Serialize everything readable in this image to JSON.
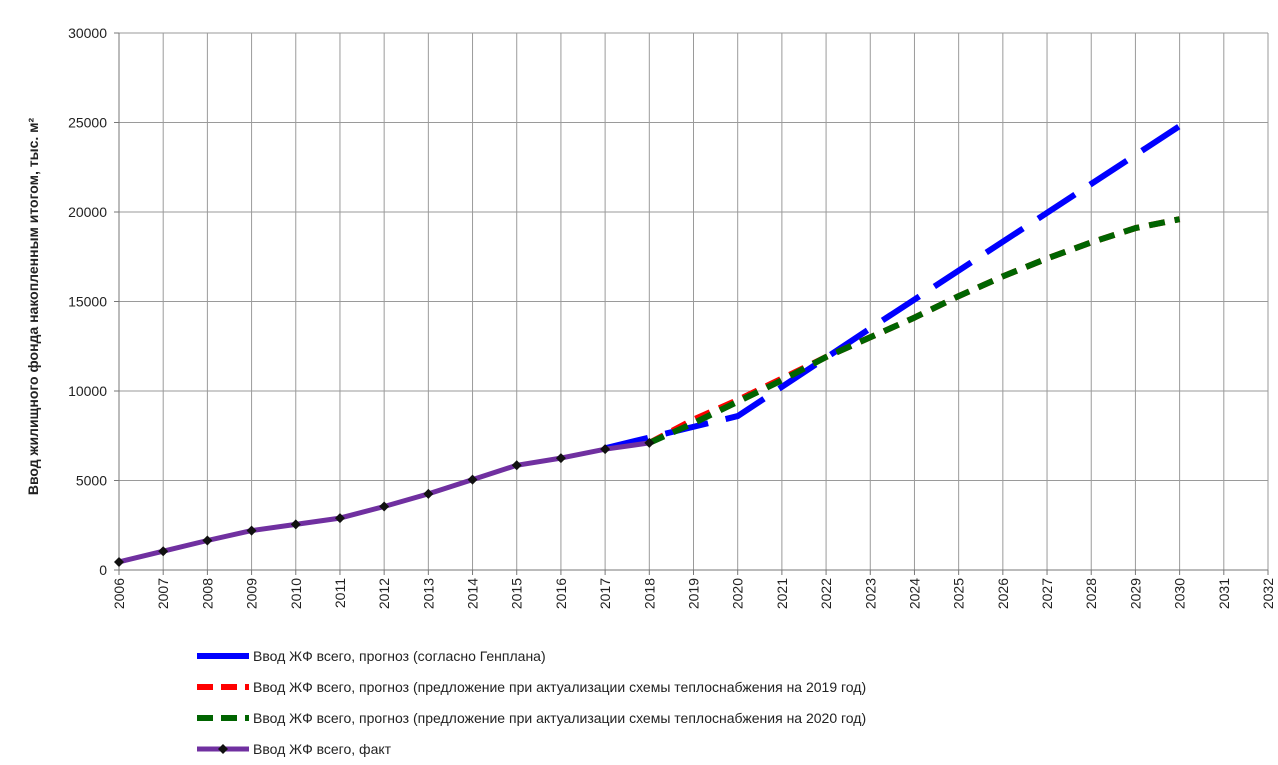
{
  "chart_data": {
    "type": "line",
    "title": "",
    "xlabel": "",
    "ylabel": "Ввод жилищного фонда накопленным итогом, тыс. м²",
    "xlim": [
      2006,
      2032
    ],
    "ylim": [
      0,
      30000
    ],
    "grid": true,
    "legend_position": "bottom",
    "x_ticks": [
      "2006",
      "2007",
      "2008",
      "2009",
      "2010",
      "2011",
      "2012",
      "2013",
      "2014",
      "2015",
      "2016",
      "2017",
      "2018",
      "2019",
      "2020",
      "2021",
      "2022",
      "2023",
      "2024",
      "2025",
      "2026",
      "2027",
      "2028",
      "2029",
      "2030",
      "2031",
      "2032"
    ],
    "y_ticks": [
      "0",
      "5000",
      "10000",
      "15000",
      "20000",
      "25000",
      "30000"
    ],
    "series": [
      {
        "name": "Ввод ЖФ всего, прогноз (согласно Генплана)",
        "color": "#0000ff",
        "style": "long-dash",
        "x": [
          2017,
          2018,
          2020,
          2023,
          2030
        ],
        "y": [
          6800,
          7400,
          8600,
          13500,
          24800
        ]
      },
      {
        "name": "Ввод ЖФ всего, прогноз (предложение при актуализации схемы теплоснабжения на 2019 год)",
        "color": "#ff0000",
        "style": "dash",
        "x": [
          2018,
          2019,
          2020,
          2021,
          2022,
          2023,
          2024,
          2025,
          2026,
          2027,
          2028,
          2029,
          2030
        ],
        "y": [
          7100,
          8400,
          9500,
          10700,
          11900,
          13000,
          14100,
          15300,
          16400,
          17400,
          18300,
          19100,
          19600
        ]
      },
      {
        "name": "Ввод ЖФ всего, прогноз (предложение при актуализации схемы теплоснабжения на 2020 год)",
        "color": "#006400",
        "style": "dash",
        "x": [
          2018,
          2019,
          2020,
          2021,
          2022,
          2023,
          2024,
          2025,
          2026,
          2027,
          2028,
          2029,
          2030
        ],
        "y": [
          7100,
          8200,
          9400,
          10600,
          11900,
          13000,
          14100,
          15300,
          16400,
          17400,
          18300,
          19100,
          19600
        ]
      },
      {
        "name": "Ввод ЖФ всего, факт",
        "color": "#7030a0",
        "style": "solid-markers",
        "x": [
          2006,
          2007,
          2008,
          2009,
          2010,
          2011,
          2012,
          2013,
          2014,
          2015,
          2016,
          2017,
          2018
        ],
        "y": [
          450,
          1050,
          1650,
          2200,
          2550,
          2900,
          3550,
          4250,
          5050,
          5850,
          6250,
          6750,
          7100
        ]
      }
    ]
  }
}
